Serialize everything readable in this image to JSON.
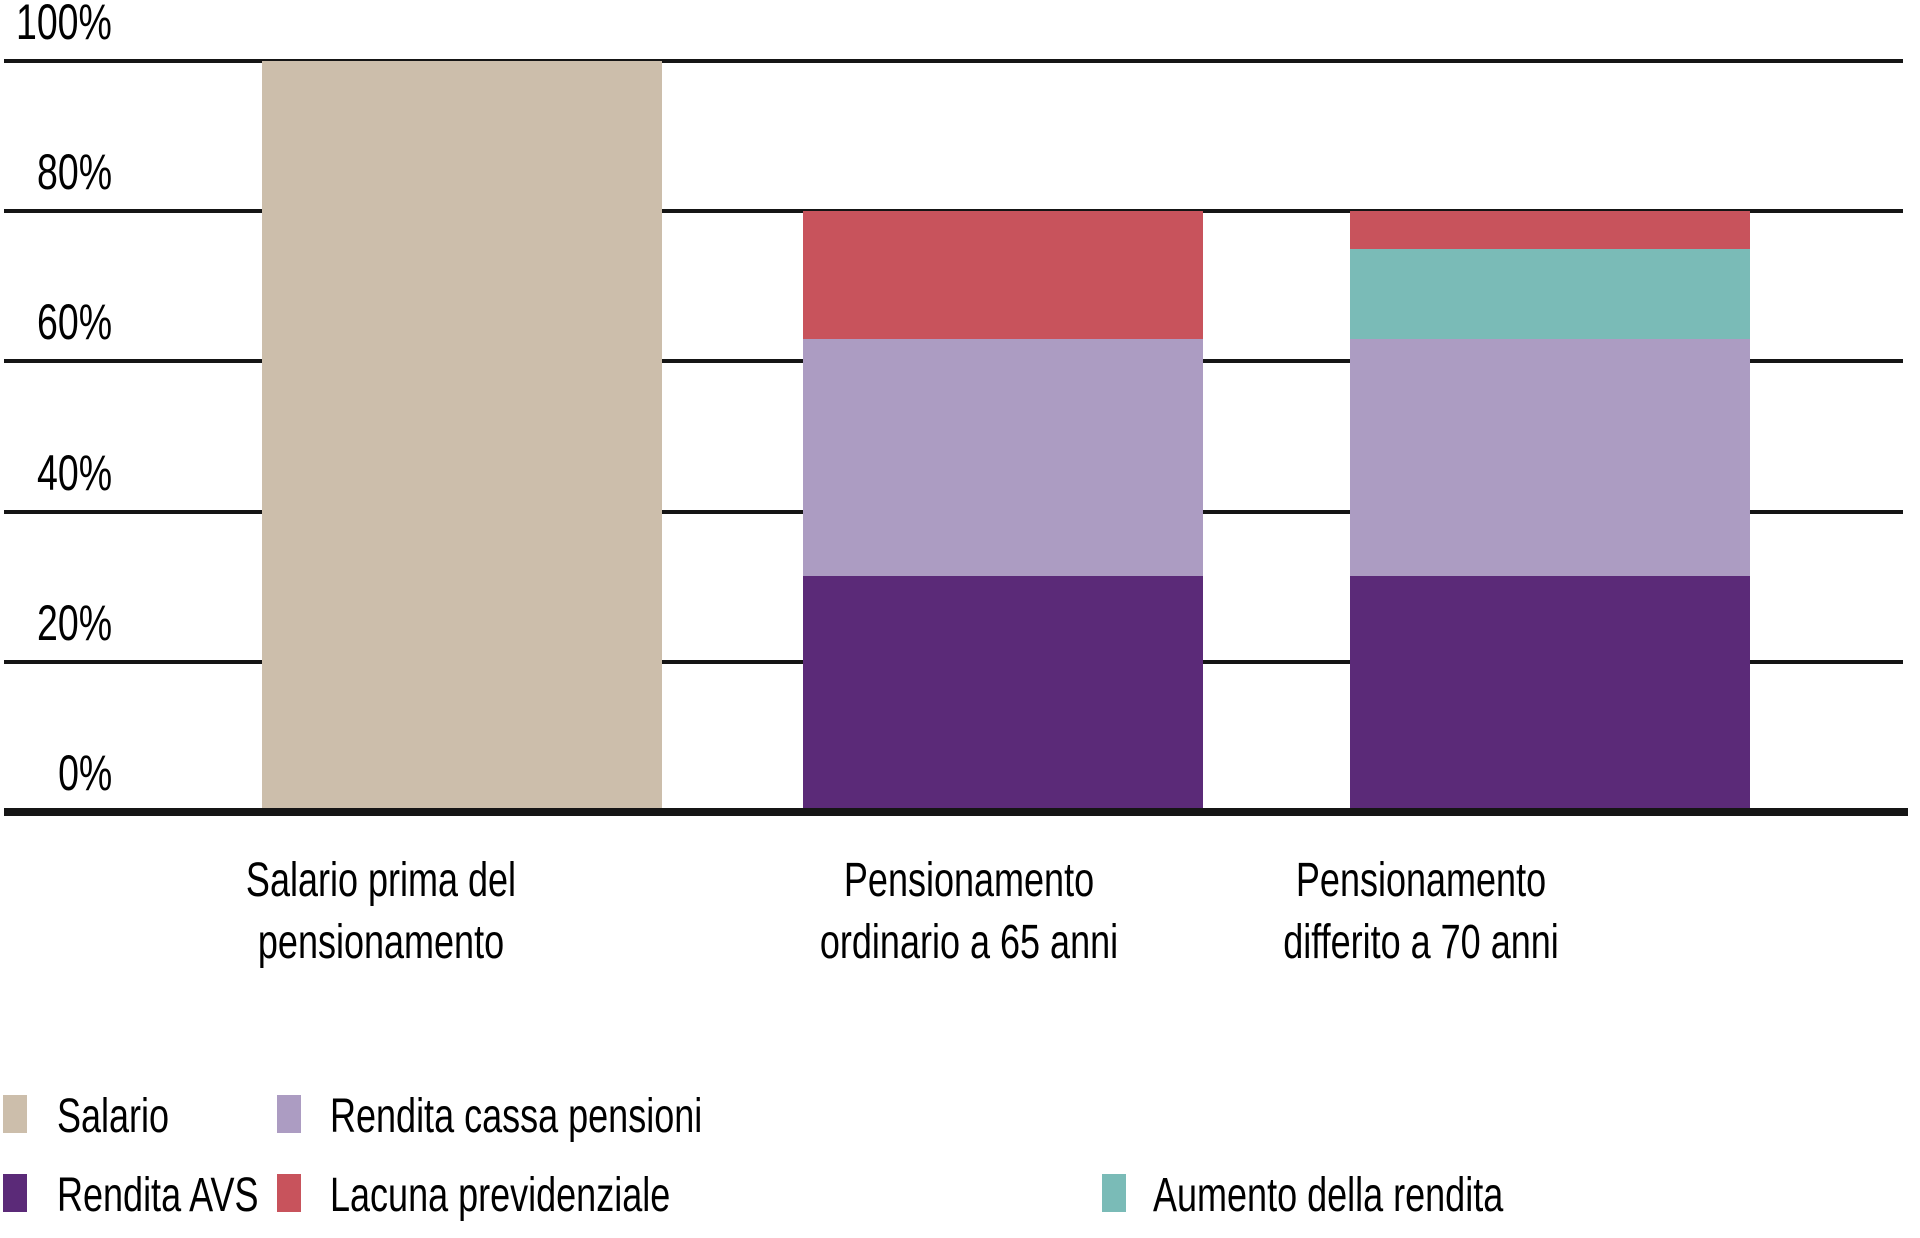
{
  "chart_data": {
    "type": "bar",
    "stacked": true,
    "title": "",
    "xlabel": "",
    "ylabel": "",
    "ylim": [
      0,
      100
    ],
    "grid": true,
    "grid_color": "#151515",
    "background_color": "#ffffff",
    "yticks": [
      "0%",
      "20%",
      "40%",
      "60%",
      "80%",
      "100%"
    ],
    "categories": [
      "Salario prima del pensionamento",
      "Pensionamento ordinario a 65 anni",
      "Pensionamento differito a 70 anni"
    ],
    "category_label_lines": [
      [
        "Salario prima del",
        "pensionamento"
      ],
      [
        "Pensionamento",
        "ordinario a 65 anni"
      ],
      [
        "Pensionamento",
        "differito a 70 anni"
      ]
    ],
    "series": [
      {
        "name": "Salario",
        "color": "#CCBEAB",
        "values": [
          100,
          0,
          0
        ]
      },
      {
        "name": "Rendita AVS",
        "color": "#5B2A78",
        "values": [
          0,
          31.5,
          31.5
        ]
      },
      {
        "name": "Rendita cassa pensioni",
        "color": "#AC9CC2",
        "values": [
          0,
          31.5,
          31.5
        ]
      },
      {
        "name": "Aumento della rendita",
        "color": "#7ABBB7",
        "values": [
          0,
          0,
          12
        ]
      },
      {
        "name": "Lacuna previdenziale",
        "color": "#C8535C",
        "values": [
          0,
          17,
          5
        ]
      }
    ],
    "legend_position": "bottom"
  },
  "legend": {
    "rows": [
      [
        {
          "label": "Salario",
          "color": "#CCBEAB"
        },
        {
          "label": "Rendita cassa pensioni",
          "color": "#AC9CC2"
        }
      ],
      [
        {
          "label": "Rendita AVS",
          "color": "#5B2A78"
        },
        {
          "label": "Lacuna previdenziale",
          "color": "#C8535C"
        },
        {
          "label": "Aumento della rendita",
          "color": "#7ABBB7"
        }
      ]
    ]
  }
}
